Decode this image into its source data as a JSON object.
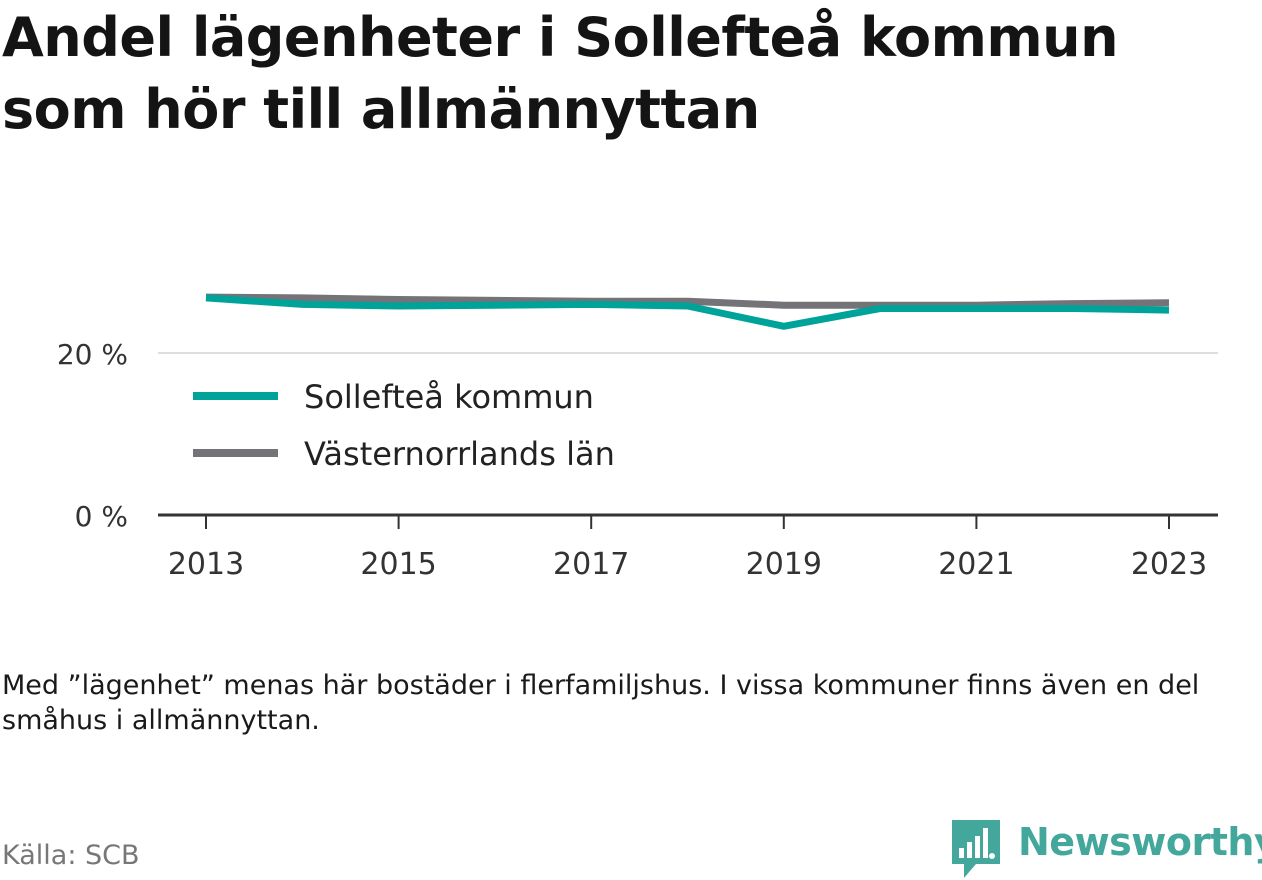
{
  "chart_data": {
    "type": "line",
    "title_lines": [
      "Andel lägenheter i Sollefteå kommun",
      "som hör till allmännyttan"
    ],
    "x": [
      2013,
      2014,
      2015,
      2016,
      2017,
      2018,
      2019,
      2020,
      2021,
      2022,
      2023
    ],
    "x_ticks": [
      "2013",
      "2015",
      "2017",
      "2019",
      "2021",
      "2023"
    ],
    "y_ticks": [
      {
        "value": 0,
        "label": "0 %"
      },
      {
        "value": 20,
        "label": "20 %"
      }
    ],
    "ylim": [
      0,
      30
    ],
    "grid": true,
    "legend_placement": "inside-left",
    "series": [
      {
        "name": "Sollefteå kommun",
        "color": "#00a39a",
        "values": [
          26.8,
          26.0,
          25.8,
          25.9,
          26.0,
          25.8,
          23.3,
          25.5,
          25.5,
          25.5,
          25.3
        ]
      },
      {
        "name": "Västernorrlands län",
        "color": "#737378",
        "values": [
          26.9,
          26.8,
          26.6,
          26.5,
          26.4,
          26.4,
          25.9,
          25.9,
          25.9,
          26.1,
          26.2
        ]
      }
    ]
  },
  "note": "Med ”lägenhet” menas här bostäder i flerfamiljshus. I vissa kommuner finns även en del småhus i allmännyttan.",
  "source": "Källa: SCB",
  "brand": {
    "name": "Newsworthy",
    "icon": "newsworthy-chart-icon",
    "color": "#43a79c"
  }
}
